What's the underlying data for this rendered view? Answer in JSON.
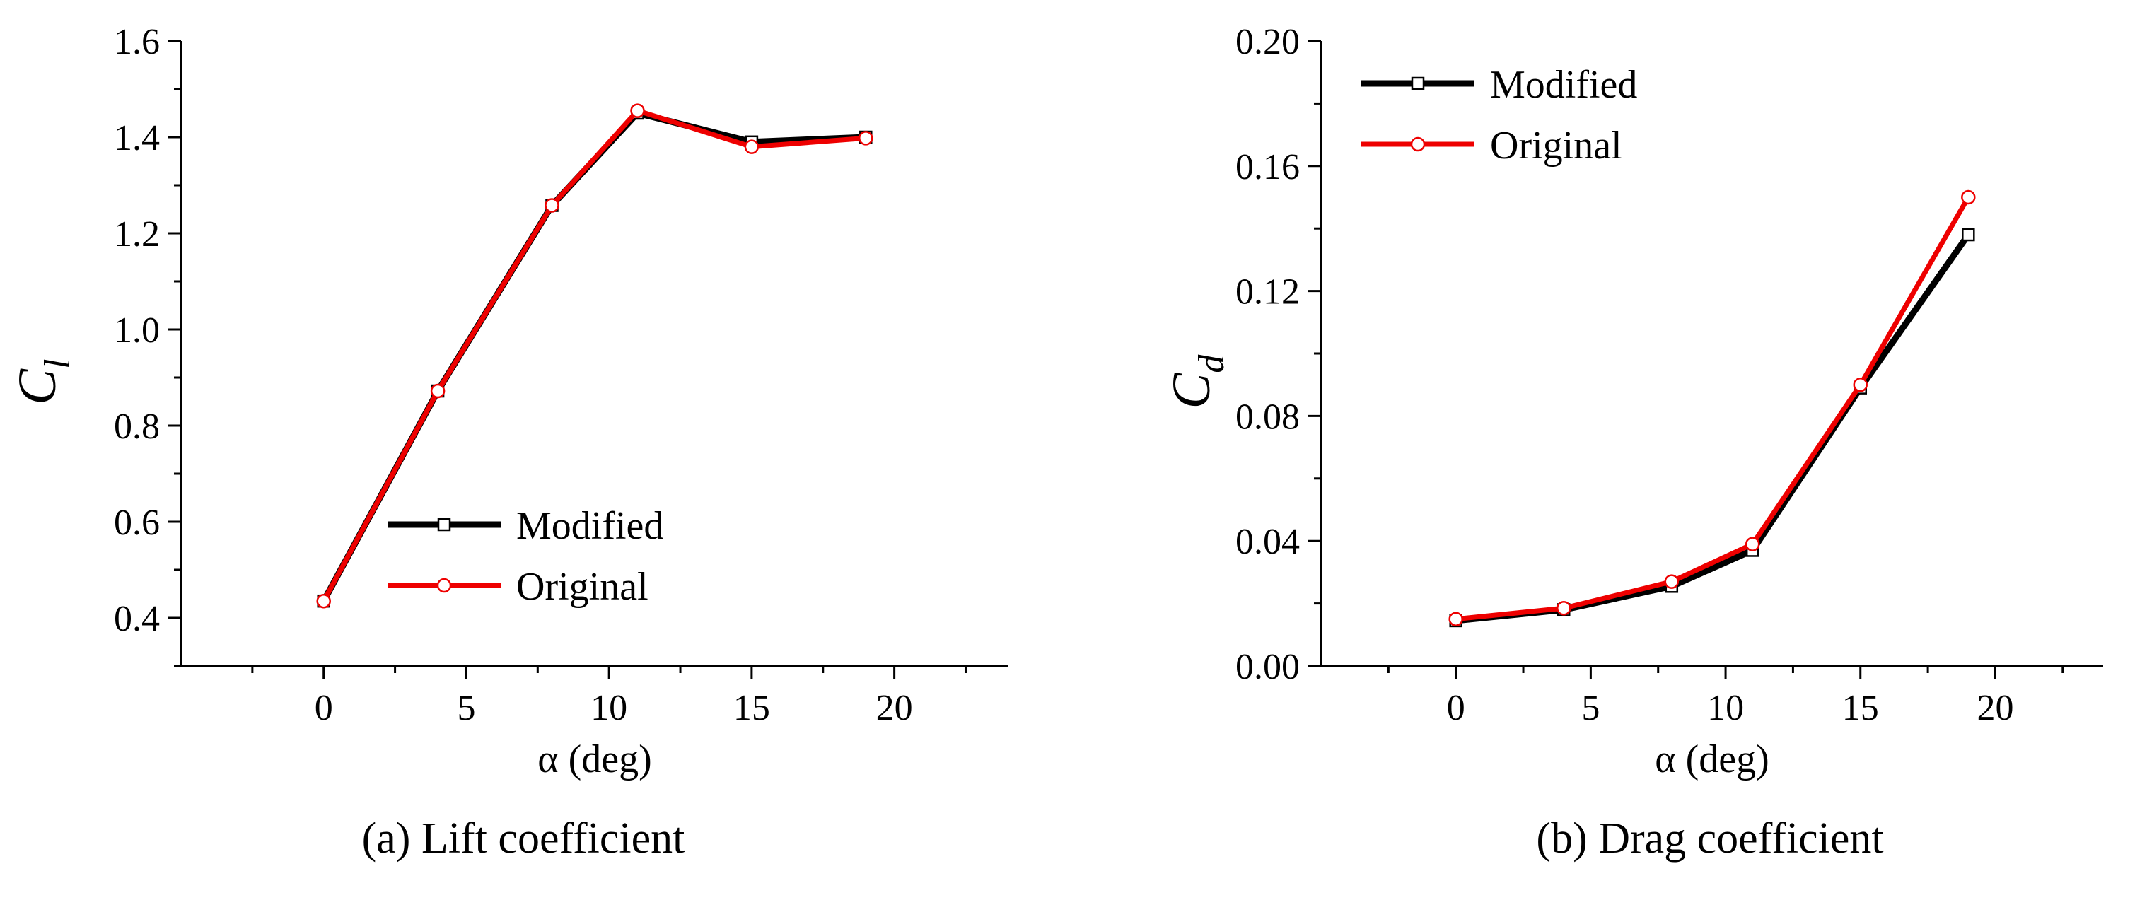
{
  "chart_data": [
    {
      "type": "line",
      "caption": "(a) Lift coefficient",
      "xlabel": "α (deg)",
      "ylabel_main": "C",
      "ylabel_sub": "l",
      "xlim": [
        -5,
        24
      ],
      "ylim": [
        0.3,
        1.6
      ],
      "xticks": [
        0,
        5,
        10,
        15,
        20
      ],
      "xtick_labels": [
        "0",
        "5",
        "10",
        "15",
        "20"
      ],
      "yticks": [
        0.4,
        0.6,
        0.8,
        1.0,
        1.2,
        1.4,
        1.6
      ],
      "ytick_labels": [
        "0.4",
        "0.6",
        "0.8",
        "1.0",
        "1.2",
        "1.4",
        "1.6"
      ],
      "legend_position": "bottom-center",
      "series": [
        {
          "name": "Modified",
          "color": "#000000",
          "marker": "square",
          "x": [
            0,
            4,
            8,
            11,
            15,
            19
          ],
          "y": [
            0.435,
            0.872,
            1.258,
            1.45,
            1.39,
            1.4
          ]
        },
        {
          "name": "Original",
          "color": "#ee0000",
          "marker": "circle",
          "x": [
            0,
            4,
            8,
            11,
            15,
            19
          ],
          "y": [
            0.435,
            0.872,
            1.258,
            1.455,
            1.38,
            1.398
          ]
        }
      ]
    },
    {
      "type": "line",
      "caption": "(b) Drag coefficient",
      "xlabel": "α (deg)",
      "ylabel_main": "C",
      "ylabel_sub": "d",
      "xlim": [
        -5,
        24
      ],
      "ylim": [
        0,
        0.2
      ],
      "xticks": [
        0,
        5,
        10,
        15,
        20
      ],
      "xtick_labels": [
        "0",
        "5",
        "10",
        "15",
        "20"
      ],
      "yticks": [
        0,
        0.04,
        0.08,
        0.12,
        0.16,
        0.2
      ],
      "ytick_labels": [
        "0.00",
        "0.04",
        "0.08",
        "0.12",
        "0.16",
        "0.20"
      ],
      "legend_position": "top-left",
      "series": [
        {
          "name": "Modified",
          "color": "#000000",
          "marker": "square",
          "x": [
            0,
            4,
            8,
            11,
            15,
            19
          ],
          "y": [
            0.0145,
            0.018,
            0.0255,
            0.037,
            0.089,
            0.138
          ]
        },
        {
          "name": "Original",
          "color": "#ee0000",
          "marker": "circle",
          "x": [
            0,
            4,
            8,
            11,
            15,
            19
          ],
          "y": [
            0.015,
            0.0185,
            0.027,
            0.039,
            0.09,
            0.15
          ]
        }
      ]
    }
  ]
}
